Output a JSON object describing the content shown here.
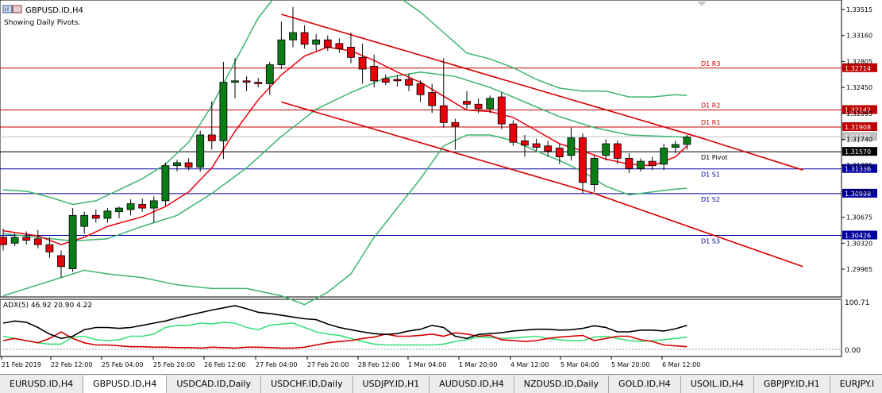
{
  "header": {
    "symbol_title": "GBPUSD.ID,H4",
    "pivot_note": "Showing Daily Pivots."
  },
  "colors": {
    "bull": "#0a7d16",
    "bear": "#e8000b",
    "bollinger": "#3cb371",
    "ma": "#e8000b",
    "resistance": "#c00000",
    "support": "#0000a0",
    "pivot": "#000000",
    "adx": "#000000",
    "plus_di": "#3ce07a",
    "minus_di": "#d40000"
  },
  "price_axis": {
    "labels": [
      "1.33515",
      "1.33160",
      "1.32805",
      "1.32450",
      "1.32095",
      "1.31740",
      "1.31385",
      "1.31030",
      "1.30675",
      "1.30320",
      "1.29965"
    ]
  },
  "pivots": [
    {
      "name": "D1  R3",
      "price": "1.32714",
      "kind": "resistance"
    },
    {
      "name": "D1  R2",
      "price": "1.32142",
      "kind": "resistance"
    },
    {
      "name": "D1  R1",
      "price": "1.31908",
      "kind": "resistance"
    },
    {
      "name": "D1  Pivot",
      "price": "1.31570",
      "kind": "pivot"
    },
    {
      "name": "D1  S1",
      "price": "1.31336",
      "kind": "support"
    },
    {
      "name": "D1  S2",
      "price": "1.30998",
      "kind": "support"
    },
    {
      "name": "D1  S3",
      "price": "1.30426",
      "kind": "support"
    }
  ],
  "current_price_tag": "1.31775",
  "indicator": {
    "label": "ADX(5) 46.92 20.90 4.22",
    "scale_top": "100.71",
    "scale_bottom": "0.00"
  },
  "time_axis": {
    "labels": [
      "21 Feb 2019",
      "22 Feb 12:00",
      "25 Feb 04:00",
      "25 Feb 20:00",
      "26 Feb 12:00",
      "27 Feb 04:00",
      "27 Feb 20:00",
      "28 Feb 12:00",
      "1 Mar 04:00",
      "1 Mar 20:00",
      "4 Mar 12:00",
      "5 Mar 04:00",
      "5 Mar 20:00",
      "6 Mar 12:00"
    ]
  },
  "tabs": [
    {
      "label": "EURUSD.ID,H4",
      "active": false
    },
    {
      "label": "GBPUSD.ID,H4",
      "active": true
    },
    {
      "label": "USDCAD.ID,Daily",
      "active": false
    },
    {
      "label": "USDCHF.ID,Daily",
      "active": false
    },
    {
      "label": "USDJPY.ID,H1",
      "active": false
    },
    {
      "label": "AUDUSD.ID,H4",
      "active": false
    },
    {
      "label": "NZDUSD.ID,Daily",
      "active": false
    },
    {
      "label": "GOLD.ID,H4",
      "active": false
    },
    {
      "label": "USOIL.ID,H4",
      "active": false
    },
    {
      "label": "GBPJPY.ID,H1",
      "active": false
    },
    {
      "label": "EURJPY.I",
      "active": false
    }
  ],
  "chart_data": {
    "type": "candlestick",
    "candles": [
      {
        "o": 1.304,
        "h": 1.3052,
        "l": 1.3022,
        "c": 1.303
      },
      {
        "o": 1.3032,
        "h": 1.3045,
        "l": 1.3028,
        "c": 1.304
      },
      {
        "o": 1.304,
        "h": 1.3048,
        "l": 1.303,
        "c": 1.3036
      },
      {
        "o": 1.3038,
        "h": 1.305,
        "l": 1.3025,
        "c": 1.303
      },
      {
        "o": 1.303,
        "h": 1.304,
        "l": 1.3012,
        "c": 1.302
      },
      {
        "o": 1.3015,
        "h": 1.3022,
        "l": 1.2985,
        "c": 1.3
      },
      {
        "o": 1.2997,
        "h": 1.308,
        "l": 1.2993,
        "c": 1.307
      },
      {
        "o": 1.3055,
        "h": 1.3075,
        "l": 1.3045,
        "c": 1.307
      },
      {
        "o": 1.307,
        "h": 1.3078,
        "l": 1.306,
        "c": 1.3066
      },
      {
        "o": 1.3066,
        "h": 1.308,
        "l": 1.306,
        "c": 1.3076
      },
      {
        "o": 1.3075,
        "h": 1.3082,
        "l": 1.3066,
        "c": 1.308
      },
      {
        "o": 1.3078,
        "h": 1.3092,
        "l": 1.307,
        "c": 1.3086
      },
      {
        "o": 1.3085,
        "h": 1.3093,
        "l": 1.3075,
        "c": 1.308
      },
      {
        "o": 1.308,
        "h": 1.3096,
        "l": 1.306,
        "c": 1.309
      },
      {
        "o": 1.309,
        "h": 1.3142,
        "l": 1.3083,
        "c": 1.3138
      },
      {
        "o": 1.3138,
        "h": 1.3146,
        "l": 1.313,
        "c": 1.3142
      },
      {
        "o": 1.3142,
        "h": 1.3148,
        "l": 1.3132,
        "c": 1.3136
      },
      {
        "o": 1.3136,
        "h": 1.3186,
        "l": 1.313,
        "c": 1.318
      },
      {
        "o": 1.318,
        "h": 1.3226,
        "l": 1.316,
        "c": 1.3172
      },
      {
        "o": 1.3172,
        "h": 1.328,
        "l": 1.3147,
        "c": 1.3252
      },
      {
        "o": 1.3252,
        "h": 1.3285,
        "l": 1.323,
        "c": 1.3254
      },
      {
        "o": 1.3254,
        "h": 1.326,
        "l": 1.324,
        "c": 1.3252
      },
      {
        "o": 1.3252,
        "h": 1.3258,
        "l": 1.3245,
        "c": 1.325
      },
      {
        "o": 1.325,
        "h": 1.328,
        "l": 1.3235,
        "c": 1.3276
      },
      {
        "o": 1.3276,
        "h": 1.3335,
        "l": 1.327,
        "c": 1.331
      },
      {
        "o": 1.331,
        "h": 1.3355,
        "l": 1.33,
        "c": 1.332
      },
      {
        "o": 1.332,
        "h": 1.333,
        "l": 1.3298,
        "c": 1.3304
      },
      {
        "o": 1.3304,
        "h": 1.3318,
        "l": 1.3295,
        "c": 1.331
      },
      {
        "o": 1.331,
        "h": 1.3316,
        "l": 1.3295,
        "c": 1.33
      },
      {
        "o": 1.3305,
        "h": 1.3312,
        "l": 1.3292,
        "c": 1.3298
      },
      {
        "o": 1.33,
        "h": 1.332,
        "l": 1.3278,
        "c": 1.3286
      },
      {
        "o": 1.3286,
        "h": 1.3305,
        "l": 1.325,
        "c": 1.327
      },
      {
        "o": 1.3274,
        "h": 1.329,
        "l": 1.3245,
        "c": 1.3254
      },
      {
        "o": 1.3257,
        "h": 1.3263,
        "l": 1.3248,
        "c": 1.3252
      },
      {
        "o": 1.3256,
        "h": 1.3262,
        "l": 1.3246,
        "c": 1.3254
      },
      {
        "o": 1.3256,
        "h": 1.3264,
        "l": 1.324,
        "c": 1.3248
      },
      {
        "o": 1.325,
        "h": 1.3255,
        "l": 1.3225,
        "c": 1.3235
      },
      {
        "o": 1.3238,
        "h": 1.325,
        "l": 1.321,
        "c": 1.322
      },
      {
        "o": 1.322,
        "h": 1.3285,
        "l": 1.319,
        "c": 1.3197
      },
      {
        "o": 1.3197,
        "h": 1.3202,
        "l": 1.316,
        "c": 1.3192
      },
      {
        "o": 1.3226,
        "h": 1.324,
        "l": 1.3215,
        "c": 1.3222
      },
      {
        "o": 1.3222,
        "h": 1.323,
        "l": 1.321,
        "c": 1.3216
      },
      {
        "o": 1.3216,
        "h": 1.3234,
        "l": 1.321,
        "c": 1.323
      },
      {
        "o": 1.3232,
        "h": 1.3238,
        "l": 1.3188,
        "c": 1.3195
      },
      {
        "o": 1.3195,
        "h": 1.32,
        "l": 1.3165,
        "c": 1.317
      },
      {
        "o": 1.3172,
        "h": 1.318,
        "l": 1.315,
        "c": 1.3166
      },
      {
        "o": 1.3168,
        "h": 1.3175,
        "l": 1.3158,
        "c": 1.3163
      },
      {
        "o": 1.3165,
        "h": 1.3172,
        "l": 1.315,
        "c": 1.3158
      },
      {
        "o": 1.3162,
        "h": 1.3168,
        "l": 1.314,
        "c": 1.315
      },
      {
        "o": 1.3152,
        "h": 1.319,
        "l": 1.3145,
        "c": 1.3176
      },
      {
        "o": 1.3176,
        "h": 1.3182,
        "l": 1.31,
        "c": 1.3115
      },
      {
        "o": 1.3112,
        "h": 1.3152,
        "l": 1.3102,
        "c": 1.3148
      },
      {
        "o": 1.3152,
        "h": 1.3174,
        "l": 1.3145,
        "c": 1.3168
      },
      {
        "o": 1.3168,
        "h": 1.3172,
        "l": 1.314,
        "c": 1.3148
      },
      {
        "o": 1.3148,
        "h": 1.3155,
        "l": 1.3128,
        "c": 1.3134
      },
      {
        "o": 1.3134,
        "h": 1.3148,
        "l": 1.313,
        "c": 1.3144
      },
      {
        "o": 1.3144,
        "h": 1.315,
        "l": 1.3132,
        "c": 1.3138
      },
      {
        "o": 1.314,
        "h": 1.3168,
        "l": 1.3132,
        "c": 1.3162
      },
      {
        "o": 1.3163,
        "h": 1.3172,
        "l": 1.3155,
        "c": 1.3167
      },
      {
        "o": 1.3167,
        "h": 1.318,
        "l": 1.316,
        "c": 1.3177
      }
    ],
    "ma_points": [
      [
        0,
        1.3049
      ],
      [
        3,
        1.3042
      ],
      [
        5,
        1.303
      ],
      [
        7,
        1.304
      ],
      [
        9,
        1.3055
      ],
      [
        12,
        1.3068
      ],
      [
        14,
        1.3082
      ],
      [
        16,
        1.3102
      ],
      [
        18,
        1.3135
      ],
      [
        20,
        1.3185
      ],
      [
        22,
        1.3228
      ],
      [
        24,
        1.3262
      ],
      [
        26,
        1.3288
      ],
      [
        28,
        1.33
      ],
      [
        30,
        1.3295
      ],
      [
        32,
        1.3282
      ],
      [
        34,
        1.3266
      ],
      [
        36,
        1.3252
      ],
      [
        38,
        1.3233
      ],
      [
        40,
        1.3214
      ],
      [
        42,
        1.3212
      ],
      [
        44,
        1.3204
      ],
      [
        46,
        1.3186
      ],
      [
        48,
        1.3168
      ],
      [
        50,
        1.3158
      ],
      [
        52,
        1.3147
      ],
      [
        54,
        1.314
      ],
      [
        56,
        1.3138
      ],
      [
        58,
        1.315
      ],
      [
        59,
        1.3165
      ]
    ],
    "bb_upper": [
      [
        0,
        1.3105
      ],
      [
        2,
        1.3103
      ],
      [
        4,
        1.3095
      ],
      [
        6,
        1.3085
      ],
      [
        8,
        1.309
      ],
      [
        10,
        1.3105
      ],
      [
        12,
        1.312
      ],
      [
        14,
        1.314
      ],
      [
        16,
        1.317
      ],
      [
        18,
        1.322
      ],
      [
        20,
        1.328
      ],
      [
        22,
        1.334
      ],
      [
        24,
        1.338
      ],
      [
        26,
        1.339
      ],
      [
        28,
        1.3393
      ],
      [
        30,
        1.3392
      ],
      [
        32,
        1.3385
      ],
      [
        34,
        1.337
      ],
      [
        36,
        1.3348
      ],
      [
        38,
        1.332
      ],
      [
        40,
        1.3292
      ],
      [
        42,
        1.3284
      ],
      [
        44,
        1.3272
      ],
      [
        46,
        1.3256
      ],
      [
        48,
        1.3244
      ],
      [
        50,
        1.324
      ],
      [
        52,
        1.324
      ],
      [
        54,
        1.3232
      ],
      [
        56,
        1.3232
      ],
      [
        58,
        1.3235
      ],
      [
        59,
        1.3234
      ]
    ],
    "bb_middle": [
      [
        0,
        1.3045
      ],
      [
        3,
        1.304
      ],
      [
        6,
        1.3035
      ],
      [
        9,
        1.3038
      ],
      [
        12,
        1.3055
      ],
      [
        15,
        1.307
      ],
      [
        18,
        1.31
      ],
      [
        21,
        1.3135
      ],
      [
        24,
        1.3178
      ],
      [
        27,
        1.3215
      ],
      [
        30,
        1.3238
      ],
      [
        33,
        1.3258
      ],
      [
        36,
        1.3266
      ],
      [
        39,
        1.326
      ],
      [
        42,
        1.3245
      ],
      [
        45,
        1.3225
      ],
      [
        48,
        1.3205
      ],
      [
        51,
        1.319
      ],
      [
        54,
        1.318
      ],
      [
        57,
        1.3178
      ],
      [
        59,
        1.3177
      ]
    ],
    "bb_lower": [
      [
        0,
        1.296
      ],
      [
        3,
        1.2975
      ],
      [
        6,
        1.299
      ],
      [
        7,
        1.2995
      ],
      [
        9,
        1.299
      ],
      [
        12,
        1.2985
      ],
      [
        15,
        1.2975
      ],
      [
        18,
        1.297
      ],
      [
        21,
        1.297
      ],
      [
        24,
        1.296
      ],
      [
        26,
        1.2948
      ],
      [
        28,
        1.2965
      ],
      [
        30,
        1.299
      ],
      [
        32,
        1.304
      ],
      [
        34,
        1.308
      ],
      [
        36,
        1.312
      ],
      [
        38,
        1.3165
      ],
      [
        40,
        1.318
      ],
      [
        42,
        1.318
      ],
      [
        44,
        1.3172
      ],
      [
        46,
        1.3158
      ],
      [
        48,
        1.3145
      ],
      [
        50,
        1.313
      ],
      [
        52,
        1.311
      ],
      [
        54,
        1.3098
      ],
      [
        56,
        1.3102
      ],
      [
        58,
        1.3106
      ],
      [
        59,
        1.3107
      ]
    ],
    "channel_upper": [
      [
        24,
        1.3345
      ],
      [
        60,
        1.3177
      ],
      [
        69,
        1.3132
      ]
    ],
    "channel_lower": [
      [
        24,
        1.3225
      ],
      [
        51,
        1.31
      ],
      [
        69,
        1.3
      ]
    ],
    "adx": [
      0.6,
      0.65,
      0.62,
      0.5,
      0.35,
      0.25,
      0.3,
      0.45,
      0.5,
      0.5,
      0.48,
      0.5,
      0.55,
      0.6,
      0.65,
      0.72,
      0.78,
      0.84,
      0.9,
      0.95,
      1.0,
      0.93,
      0.85,
      0.82,
      0.78,
      0.74,
      0.7,
      0.68,
      0.58,
      0.5,
      0.45,
      0.4,
      0.36,
      0.34,
      0.36,
      0.42,
      0.46,
      0.55,
      0.5,
      0.3,
      0.25,
      0.34,
      0.36,
      0.38,
      0.42,
      0.44,
      0.46,
      0.46,
      0.44,
      0.45,
      0.48,
      0.54,
      0.5,
      0.4,
      0.4,
      0.44,
      0.44,
      0.42,
      0.47,
      0.55
    ],
    "plus_di": [
      0.3,
      0.25,
      0.2,
      0.15,
      0.12,
      0.12,
      0.28,
      0.3,
      0.22,
      0.2,
      0.22,
      0.3,
      0.3,
      0.35,
      0.5,
      0.55,
      0.55,
      0.6,
      0.58,
      0.62,
      0.6,
      0.5,
      0.45,
      0.55,
      0.58,
      0.6,
      0.5,
      0.4,
      0.35,
      0.32,
      0.25,
      0.18,
      0.12,
      0.1,
      0.1,
      0.1,
      0.1,
      0.1,
      0.12,
      0.18,
      0.22,
      0.28,
      0.27,
      0.25,
      0.26,
      0.28,
      0.3,
      0.25,
      0.22,
      0.2,
      0.2,
      0.28,
      0.3,
      0.25,
      0.2,
      0.18,
      0.2,
      0.22,
      0.25,
      0.28
    ],
    "minus_di": [
      0.2,
      0.25,
      0.2,
      0.15,
      0.25,
      0.4,
      0.25,
      0.15,
      0.1,
      0.1,
      0.08,
      0.06,
      0.06,
      0.05,
      0.05,
      0.04,
      0.04,
      0.03,
      0.05,
      0.04,
      0.03,
      0.05,
      0.05,
      0.04,
      0.03,
      0.03,
      0.05,
      0.1,
      0.15,
      0.18,
      0.2,
      0.25,
      0.28,
      0.35,
      0.3,
      0.3,
      0.32,
      0.35,
      0.3,
      0.38,
      0.35,
      0.3,
      0.32,
      0.22,
      0.2,
      0.18,
      0.2,
      0.25,
      0.28,
      0.3,
      0.32,
      0.2,
      0.25,
      0.3,
      0.3,
      0.22,
      0.18,
      0.1,
      0.08,
      0.06
    ]
  }
}
